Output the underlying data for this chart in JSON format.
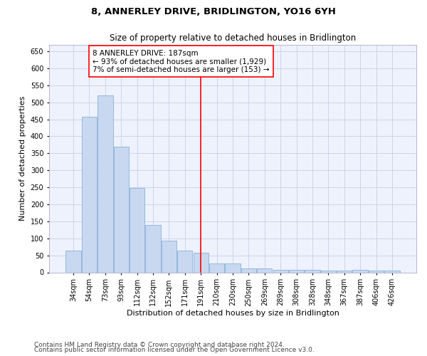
{
  "title": "8, ANNERLEY DRIVE, BRIDLINGTON, YO16 6YH",
  "subtitle": "Size of property relative to detached houses in Bridlington",
  "xlabel": "Distribution of detached houses by size in Bridlington",
  "ylabel": "Number of detached properties",
  "categories": [
    "34sqm",
    "54sqm",
    "73sqm",
    "93sqm",
    "112sqm",
    "132sqm",
    "152sqm",
    "171sqm",
    "191sqm",
    "210sqm",
    "230sqm",
    "250sqm",
    "269sqm",
    "289sqm",
    "308sqm",
    "328sqm",
    "348sqm",
    "367sqm",
    "387sqm",
    "406sqm",
    "426sqm"
  ],
  "values": [
    63,
    458,
    520,
    370,
    248,
    140,
    93,
    63,
    57,
    27,
    27,
    11,
    11,
    8,
    8,
    7,
    5,
    5,
    7,
    5,
    5
  ],
  "bar_color": "#c8d8f0",
  "bar_edge_color": "#8ab0d8",
  "marker_line_index": 8,
  "annotation_text_line1": "8 ANNERLEY DRIVE: 187sqm",
  "annotation_text_line2": "← 93% of detached houses are smaller (1,929)",
  "annotation_text_line3": "7% of semi-detached houses are larger (153) →",
  "ylim": [
    0,
    670
  ],
  "yticks": [
    0,
    50,
    100,
    150,
    200,
    250,
    300,
    350,
    400,
    450,
    500,
    550,
    600,
    650
  ],
  "footer_line1": "Contains HM Land Registry data © Crown copyright and database right 2024.",
  "footer_line2": "Contains public sector information licensed under the Open Government Licence v3.0.",
  "background_color": "#eef2fc",
  "grid_color": "#c8cfe8",
  "title_fontsize": 9.5,
  "subtitle_fontsize": 8.5,
  "axis_label_fontsize": 8,
  "tick_fontsize": 7,
  "annotation_fontsize": 7.5,
  "footer_fontsize": 6.5
}
